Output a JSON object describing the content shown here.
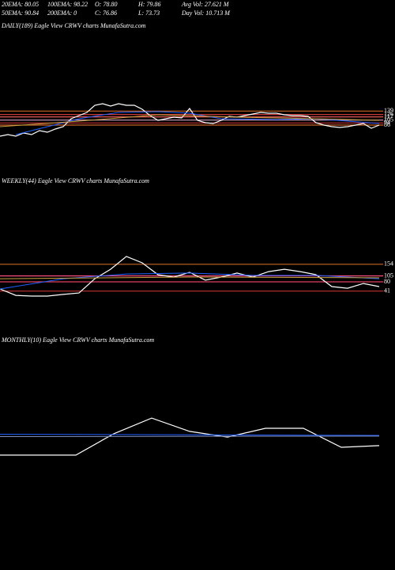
{
  "header": {
    "rows": [
      [
        "20EMA: 80.05",
        "100EMA: 98.22",
        "O: 78.80",
        "H: 79.86",
        "Avg Vol: 27.621 M"
      ],
      [
        "50EMA: 90.84",
        "200EMA: 0",
        "C: 76.86",
        "L: 73.73",
        "Day Vol: 10.713 M"
      ]
    ]
  },
  "chart_data": [
    {
      "type": "line",
      "title": "DAILY(189) Eagle  View  CRWV charts MunafaSutra.com",
      "xlim": [
        0,
        48
      ],
      "ylim": [
        20,
        200
      ],
      "yticks": [
        139,
        126,
        117,
        105,
        94,
        86
      ],
      "level_colors": [
        "#c86428",
        "#e04040",
        "#ff6060",
        "#d0a0c0",
        "#c03030",
        "#c86428"
      ],
      "series": [
        {
          "color": "#ffffff",
          "x": [
            0,
            1,
            2,
            3,
            4,
            5,
            6,
            7,
            8,
            9,
            10,
            11,
            12,
            13,
            14,
            15,
            16,
            17,
            18,
            19,
            20,
            21,
            22,
            23,
            24,
            25,
            26,
            27,
            28,
            29,
            30,
            31,
            32,
            33,
            34,
            35,
            36,
            37,
            38,
            39,
            40,
            41,
            42,
            43,
            44,
            45,
            46,
            47,
            48
          ],
          "values": [
            44,
            50,
            44,
            56,
            50,
            65,
            59,
            71,
            80,
            110,
            122,
            134,
            161,
            167,
            158,
            167,
            161,
            161,
            146,
            122,
            104,
            110,
            116,
            113,
            149,
            104,
            95,
            92,
            104,
            119,
            116,
            122,
            128,
            134,
            131,
            131,
            125,
            122,
            122,
            119,
            95,
            86,
            80,
            77,
            80,
            86,
            92,
            74,
            86
          ]
        },
        {
          "color": "#2060ff",
          "x": [
            2,
            6,
            10,
            15,
            20,
            24,
            28,
            35,
            40,
            44,
            48
          ],
          "values": [
            50,
            80,
            110,
            134,
            137,
            131,
            110,
            107,
            110,
            101,
            92
          ]
        },
        {
          "color": "#c8a040",
          "x": [
            0,
            10,
            20,
            30,
            40,
            48
          ],
          "values": [
            80,
            101,
            125,
            116,
            110,
            104
          ]
        }
      ]
    },
    {
      "type": "line",
      "title": "WEEKLY(44) Eagle  View  CRWV charts MunafaSutra.com",
      "xlim": [
        0,
        24
      ],
      "ylim": [
        0,
        200
      ],
      "yticks": [
        154,
        105,
        80,
        41
      ],
      "level_colors": [
        "#c86428",
        "#ff5080",
        "#e04060",
        "#c03030"
      ],
      "series": [
        {
          "color": "#ffffff",
          "x": [
            0,
            1,
            2,
            3,
            4,
            5,
            6,
            7,
            8,
            9,
            10,
            11,
            12,
            13,
            14,
            15,
            16,
            17,
            18,
            19,
            20,
            21,
            22,
            23,
            24
          ],
          "values": [
            50,
            23,
            20,
            20,
            27,
            33,
            93,
            133,
            187,
            160,
            110,
            100,
            120,
            87,
            100,
            117,
            100,
            123,
            133,
            123,
            110,
            60,
            53,
            73,
            60
          ]
        },
        {
          "color": "#2060ff",
          "x": [
            0,
            4,
            8,
            12,
            16,
            20,
            24
          ],
          "values": [
            50,
            93,
            113,
            117,
            107,
            107,
            93
          ]
        },
        {
          "color": "#c8a040",
          "x": [
            0,
            12,
            24
          ],
          "values": [
            93,
            100,
            97
          ]
        }
      ]
    },
    {
      "type": "line",
      "title": "MONTHLY(10) Eagle  View  CRWV charts MunafaSutra.com",
      "xlim": [
        0,
        10
      ],
      "ylim": [
        0,
        200
      ],
      "yticks": [],
      "level_colors": [],
      "series": [
        {
          "color": "#ffffff",
          "x": [
            0,
            1,
            2,
            3,
            4,
            5,
            6,
            7,
            8,
            9,
            10
          ],
          "values": [
            17,
            17,
            17,
            107,
            173,
            117,
            93,
            130,
            130,
            50,
            57
          ]
        },
        {
          "color": "#2060ff",
          "x": [
            0,
            10
          ],
          "values": [
            105,
            100
          ]
        },
        {
          "color": "#8090c0",
          "x": [
            0,
            10
          ],
          "values": [
            95,
            97
          ]
        }
      ]
    }
  ]
}
